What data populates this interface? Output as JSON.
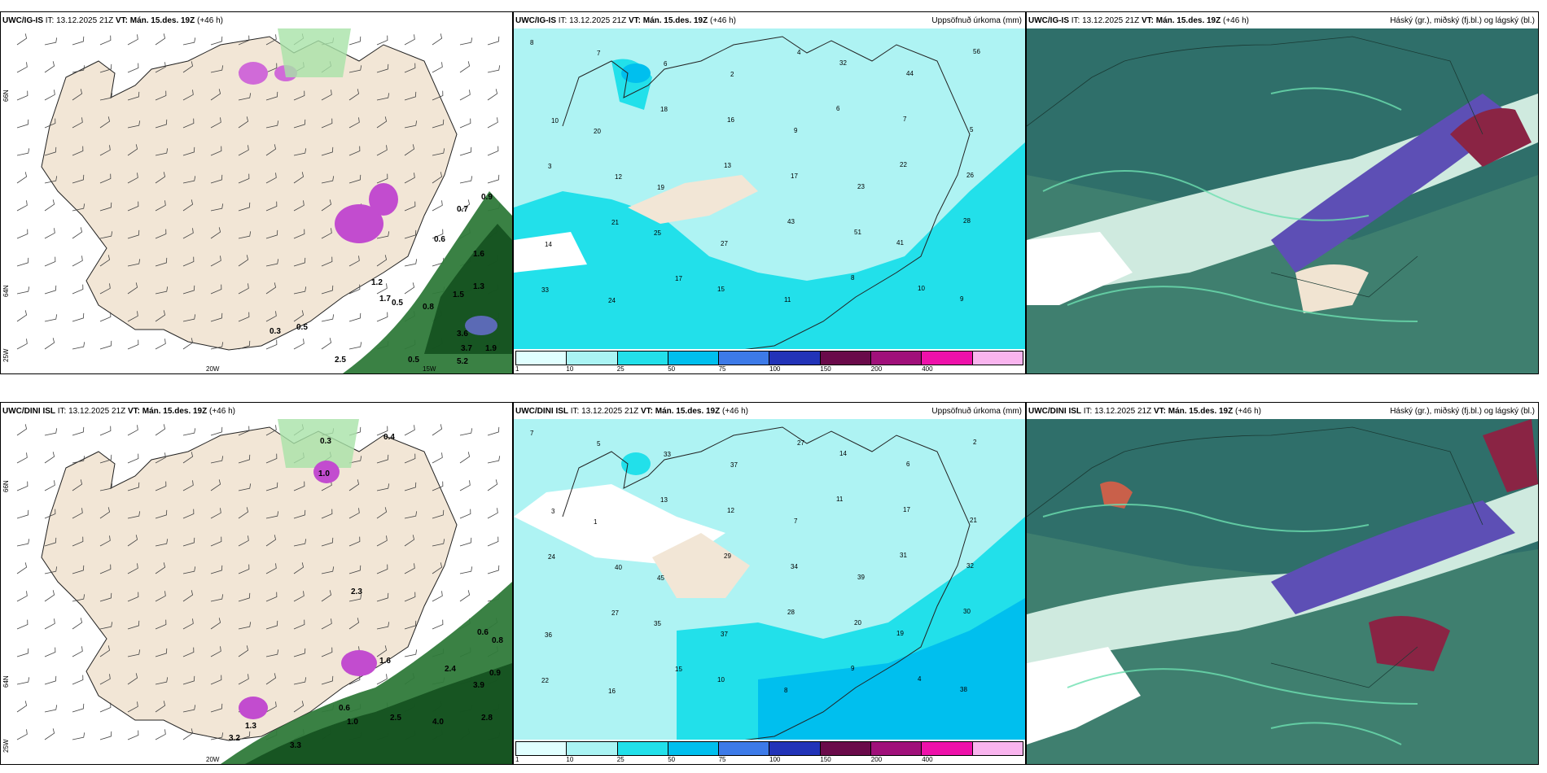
{
  "rows": [
    {
      "model": "UWC/IG-IS",
      "panels": [
        {
          "type": "wind",
          "it_label": "IT:",
          "it": "13.12.2025 21Z",
          "vt_label": "VT:",
          "vt": "Mán. 15.des. 19Z",
          "lead": "(+46 h)",
          "right": ""
        },
        {
          "type": "precip",
          "it_label": "IT:",
          "it": "13.12.2025 21Z",
          "vt_label": "VT:",
          "vt": "Mán. 15.des. 19Z",
          "lead": "(+46 h)",
          "right": "Uppsöfnuð úrkoma (mm)"
        },
        {
          "type": "cloud",
          "it_label": "IT:",
          "it": "13.12.2025 21Z",
          "vt_label": "VT:",
          "vt": "Mán. 15.des. 19Z",
          "lead": "(+46 h)",
          "right": "Háský (gr.), miðský (fj.bl.) og lágský (bl.)"
        }
      ]
    },
    {
      "model": "UWC/DINI ISL",
      "panels": [
        {
          "type": "wind",
          "it_label": "IT:",
          "it": "13.12.2025 21Z",
          "vt_label": "VT:",
          "vt": "Mán. 15.des. 19Z",
          "lead": "(+46 h)",
          "right": ""
        },
        {
          "type": "precip",
          "it_label": "IT:",
          "it": "13.12.2025 21Z",
          "vt_label": "VT:",
          "vt": "Mán. 15.des. 19Z",
          "lead": "(+46 h)",
          "right": "Uppsöfnuð úrkoma (mm)"
        },
        {
          "type": "cloud",
          "it_label": "IT:",
          "it": "13.12.2025 21Z",
          "vt_label": "VT:",
          "vt": "Mán. 15.des. 19Z",
          "lead": "(+46 h)",
          "right": "Háský (gr.), miðský (fj.bl.) og lágský (bl.)"
        }
      ]
    }
  ],
  "axis_labels": {
    "lat_66": "66N",
    "lat_64": "64N",
    "lon_25": "25W",
    "lon_20": "20W",
    "lon_15": "15W"
  },
  "precip_colorbar": {
    "ticks": [
      "1",
      "10",
      "25",
      "50",
      "75",
      "100",
      "150",
      "200",
      "400"
    ],
    "colors": [
      "#e0ffff",
      "#aaf4f4",
      "#22e0ea",
      "#00bfee",
      "#3d7ae8",
      "#2233b8",
      "#6a0a4a",
      "#a0107a",
      "#ee11aa",
      "#f9b4ee"
    ]
  },
  "precip_values": {
    "igis": [
      "8",
      "7",
      "6",
      "2",
      "4",
      "32",
      "44",
      "56",
      "10",
      "20",
      "18",
      "16",
      "9",
      "6",
      "7",
      "5",
      "3",
      "12",
      "19",
      "13",
      "17",
      "23",
      "22",
      "26",
      "14",
      "21",
      "25",
      "27",
      "43",
      "51",
      "41",
      "28",
      "33",
      "24",
      "17",
      "15",
      "11",
      "8",
      "10",
      "9"
    ],
    "dini": [
      "7",
      "5",
      "33",
      "37",
      "27",
      "14",
      "6",
      "2",
      "3",
      "1",
      "13",
      "12",
      "7",
      "11",
      "17",
      "21",
      "24",
      "40",
      "45",
      "29",
      "34",
      "39",
      "31",
      "32",
      "36",
      "27",
      "35",
      "37",
      "28",
      "20",
      "19",
      "30",
      "22",
      "16",
      "15",
      "10",
      "8",
      "9",
      "4",
      "38"
    ]
  },
  "wind_values": {
    "igis": [
      "0.5",
      "0.9",
      "0.7",
      "0.6",
      "1.6",
      "1.3",
      "0.8",
      "2.5",
      "3.6",
      "3.7",
      "5.2",
      "1.9",
      "0.5",
      "0.5",
      "1.7",
      "1.2",
      "1.5",
      "0.3"
    ],
    "dini": [
      "0.3",
      "0.4",
      "1.0",
      "2.3",
      "1.6",
      "0.9",
      "0.6",
      "0.8",
      "3.9",
      "2.8",
      "4.0",
      "3.3",
      "1.0",
      "0.6",
      "3.2",
      "2.5",
      "1.3",
      "2.4"
    ]
  }
}
